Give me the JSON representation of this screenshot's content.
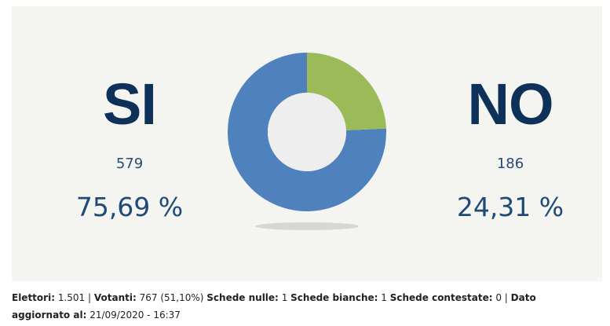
{
  "chart_data": {
    "type": "pie",
    "categories": [
      "SI",
      "NO"
    ],
    "values": [
      579,
      186
    ],
    "percentages": [
      "75,69 %",
      "24,31 %"
    ],
    "colors": [
      "#4f81bd",
      "#9bbb59"
    ]
  },
  "yes": {
    "label": "SI",
    "count": "579",
    "percent": "75,69 %"
  },
  "no": {
    "label": "NO",
    "count": "186",
    "percent": "24,31 %"
  },
  "footer": {
    "elettori_label": "Elettori:",
    "elettori_value": "1.501",
    "votanti_label": "Votanti:",
    "votanti_value": "767 (51,10%)",
    "nulle_label": "Schede nulle:",
    "nulle_value": "1",
    "bianche_label": "Schede bianche:",
    "bianche_value": "1",
    "contestate_label": "Schede contestate:",
    "contestate_value": "0",
    "updated_label": "Dato aggiornato al:",
    "updated_value": "21/09/2020 - 16:37"
  },
  "colors": {
    "background": "#f4f4f1",
    "yes": "#4f81bd",
    "no": "#9bbb59",
    "center": "#eeeeee",
    "headline": "#0d3158"
  }
}
